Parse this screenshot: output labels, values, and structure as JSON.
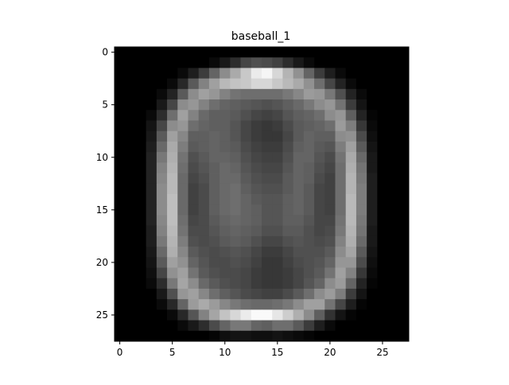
{
  "chart_data": {
    "type": "heatmap",
    "title": "baseball_1",
    "xlabel": "",
    "ylabel": "",
    "colormap": "gray",
    "grid": false,
    "rows": 28,
    "cols": 28,
    "xlim": [
      -0.5,
      27.5
    ],
    "ylim": [
      27.5,
      -0.5
    ],
    "xticks": [
      0,
      5,
      10,
      15,
      20,
      25
    ],
    "yticks": [
      0,
      5,
      10,
      15,
      20,
      25
    ],
    "xticklabels": [
      "0",
      "5",
      "10",
      "15",
      "20",
      "25"
    ],
    "yticklabels": [
      "0",
      "5",
      "10",
      "15",
      "20",
      "25"
    ],
    "value_range": [
      0,
      255
    ],
    "values": [
      [
        0,
        0,
        0,
        0,
        0,
        0,
        0,
        0,
        0,
        0,
        0,
        0,
        0,
        0,
        0,
        0,
        0,
        0,
        0,
        0,
        0,
        0,
        0,
        0,
        0,
        0,
        0,
        0
      ],
      [
        0,
        0,
        0,
        0,
        0,
        0,
        0,
        0,
        0,
        10,
        25,
        45,
        70,
        80,
        75,
        65,
        45,
        25,
        10,
        0,
        0,
        0,
        0,
        0,
        0,
        0,
        0,
        0
      ],
      [
        0,
        0,
        0,
        0,
        0,
        0,
        10,
        30,
        60,
        100,
        140,
        170,
        200,
        235,
        245,
        215,
        180,
        145,
        100,
        60,
        30,
        10,
        0,
        0,
        0,
        0,
        0,
        0
      ],
      [
        0,
        0,
        0,
        0,
        0,
        10,
        40,
        90,
        130,
        160,
        185,
        195,
        200,
        215,
        215,
        200,
        185,
        170,
        145,
        110,
        70,
        35,
        10,
        0,
        0,
        0,
        0,
        0
      ],
      [
        0,
        0,
        0,
        0,
        10,
        35,
        90,
        140,
        160,
        150,
        130,
        115,
        110,
        110,
        110,
        110,
        120,
        135,
        155,
        150,
        120,
        80,
        35,
        10,
        0,
        0,
        0,
        0
      ],
      [
        0,
        0,
        0,
        0,
        25,
        70,
        140,
        150,
        130,
        110,
        100,
        95,
        90,
        85,
        80,
        85,
        95,
        105,
        120,
        140,
        150,
        115,
        60,
        20,
        0,
        0,
        0,
        0
      ],
      [
        0,
        0,
        0,
        10,
        45,
        110,
        160,
        130,
        105,
        95,
        95,
        90,
        80,
        70,
        65,
        70,
        85,
        95,
        100,
        110,
        140,
        150,
        95,
        35,
        5,
        0,
        0,
        0
      ],
      [
        0,
        0,
        0,
        20,
        70,
        140,
        150,
        110,
        100,
        95,
        95,
        85,
        70,
        60,
        55,
        60,
        75,
        90,
        95,
        100,
        110,
        155,
        125,
        55,
        10,
        0,
        0,
        0
      ],
      [
        0,
        0,
        0,
        25,
        90,
        160,
        135,
        95,
        95,
        100,
        95,
        85,
        70,
        60,
        55,
        55,
        70,
        90,
        100,
        95,
        95,
        140,
        145,
        75,
        15,
        0,
        0,
        0
      ],
      [
        0,
        0,
        0,
        30,
        105,
        170,
        125,
        90,
        95,
        100,
        95,
        90,
        75,
        65,
        60,
        60,
        75,
        95,
        100,
        90,
        85,
        125,
        160,
        90,
        20,
        0,
        0,
        0
      ],
      [
        0,
        0,
        0,
        35,
        120,
        175,
        115,
        80,
        90,
        100,
        100,
        95,
        80,
        70,
        65,
        65,
        80,
        100,
        100,
        85,
        75,
        115,
        170,
        105,
        25,
        0,
        0,
        0
      ],
      [
        0,
        0,
        0,
        35,
        130,
        180,
        110,
        75,
        85,
        95,
        105,
        100,
        85,
        75,
        70,
        70,
        85,
        100,
        95,
        80,
        70,
        110,
        175,
        115,
        25,
        0,
        0,
        0
      ],
      [
        0,
        0,
        0,
        35,
        135,
        185,
        105,
        70,
        80,
        95,
        105,
        105,
        90,
        80,
        75,
        75,
        90,
        100,
        95,
        75,
        65,
        110,
        180,
        120,
        30,
        0,
        0,
        0
      ],
      [
        0,
        0,
        0,
        35,
        140,
        185,
        105,
        65,
        75,
        95,
        105,
        110,
        95,
        85,
        80,
        80,
        90,
        100,
        90,
        70,
        65,
        110,
        180,
        125,
        30,
        0,
        0,
        0
      ],
      [
        0,
        0,
        0,
        35,
        140,
        190,
        105,
        65,
        75,
        95,
        105,
        110,
        100,
        90,
        85,
        85,
        95,
        100,
        90,
        70,
        65,
        110,
        185,
        125,
        30,
        0,
        0,
        0
      ],
      [
        0,
        0,
        0,
        35,
        140,
        190,
        105,
        65,
        75,
        95,
        105,
        110,
        100,
        95,
        85,
        85,
        95,
        100,
        90,
        70,
        65,
        110,
        185,
        125,
        30,
        0,
        0,
        0
      ],
      [
        0,
        0,
        0,
        35,
        135,
        190,
        110,
        70,
        75,
        90,
        100,
        105,
        100,
        95,
        85,
        85,
        95,
        95,
        85,
        70,
        70,
        115,
        185,
        120,
        30,
        0,
        0,
        0
      ],
      [
        0,
        0,
        0,
        30,
        130,
        185,
        115,
        75,
        75,
        85,
        95,
        100,
        95,
        90,
        80,
        80,
        90,
        90,
        80,
        70,
        75,
        120,
        180,
        115,
        25,
        0,
        0,
        0
      ],
      [
        0,
        0,
        0,
        30,
        120,
        180,
        125,
        80,
        75,
        80,
        90,
        95,
        90,
        80,
        70,
        70,
        80,
        85,
        80,
        75,
        80,
        130,
        175,
        105,
        25,
        0,
        0,
        0
      ],
      [
        0,
        0,
        0,
        25,
        105,
        175,
        135,
        90,
        80,
        75,
        80,
        85,
        80,
        70,
        60,
        60,
        70,
        80,
        80,
        80,
        90,
        140,
        165,
        90,
        20,
        0,
        0,
        0
      ],
      [
        0,
        0,
        0,
        20,
        90,
        160,
        145,
        100,
        85,
        75,
        75,
        80,
        75,
        65,
        55,
        55,
        65,
        75,
        80,
        85,
        100,
        150,
        150,
        75,
        15,
        0,
        0,
        0
      ],
      [
        0,
        0,
        0,
        15,
        70,
        145,
        160,
        115,
        90,
        80,
        75,
        75,
        70,
        60,
        55,
        55,
        60,
        70,
        80,
        90,
        115,
        160,
        130,
        55,
        10,
        0,
        0,
        0
      ],
      [
        0,
        0,
        0,
        10,
        45,
        120,
        165,
        140,
        105,
        90,
        80,
        75,
        70,
        60,
        55,
        55,
        60,
        70,
        85,
        100,
        140,
        155,
        100,
        35,
        5,
        0,
        0,
        0
      ],
      [
        0,
        0,
        0,
        0,
        25,
        80,
        150,
        160,
        135,
        110,
        95,
        85,
        75,
        70,
        65,
        65,
        75,
        90,
        110,
        140,
        155,
        125,
        60,
        20,
        0,
        0,
        0,
        0
      ],
      [
        0,
        0,
        0,
        0,
        10,
        40,
        100,
        155,
        170,
        155,
        135,
        120,
        110,
        105,
        105,
        110,
        120,
        140,
        160,
        160,
        115,
        70,
        30,
        5,
        0,
        0,
        0,
        0
      ],
      [
        0,
        0,
        0,
        0,
        0,
        10,
        40,
        85,
        130,
        165,
        195,
        215,
        235,
        250,
        250,
        230,
        205,
        175,
        140,
        95,
        50,
        20,
        5,
        0,
        0,
        0,
        0,
        0
      ],
      [
        0,
        0,
        0,
        0,
        0,
        0,
        10,
        25,
        45,
        75,
        100,
        120,
        120,
        100,
        95,
        110,
        110,
        90,
        60,
        30,
        10,
        0,
        0,
        0,
        0,
        0,
        0,
        0
      ],
      [
        0,
        0,
        0,
        0,
        0,
        0,
        0,
        0,
        0,
        5,
        15,
        20,
        20,
        15,
        15,
        20,
        15,
        10,
        5,
        0,
        0,
        0,
        0,
        0,
        0,
        0,
        0,
        0
      ]
    ]
  }
}
